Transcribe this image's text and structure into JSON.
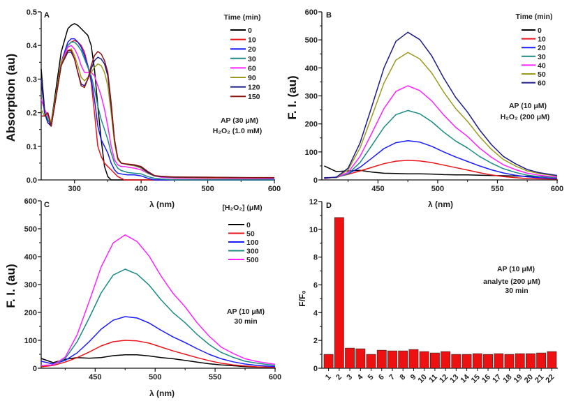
{
  "chart_data": [
    {
      "panel": "A",
      "type": "line",
      "xlabel": "λ (nm)",
      "ylabel": "Absorption (au)",
      "xlim": [
        250,
        600
      ],
      "ylim": [
        0,
        0.5
      ],
      "xticks": [
        300,
        400,
        500,
        600
      ],
      "xtick_labels": [
        "300",
        "400",
        "500",
        "600"
      ],
      "yticks": [
        0,
        0.1,
        0.2,
        0.3,
        0.4,
        0.5
      ],
      "ytick_labels": [
        "0.0",
        "0.1",
        "0.2",
        "0.3",
        "0.4",
        "0.5"
      ],
      "grid": false,
      "legend_title": "Time (min)",
      "legend_placement": "top-right",
      "annotations": [
        "AP (30 μM)",
        "H₂O₂ (1.0 mM)"
      ],
      "x": [
        250,
        255,
        260,
        265,
        270,
        280,
        290,
        295,
        300,
        305,
        310,
        315,
        320,
        325,
        330,
        335,
        340,
        345,
        350,
        355,
        360,
        365,
        370,
        375,
        380,
        390,
        400,
        410,
        420,
        430,
        450,
        500,
        550,
        600
      ],
      "series": [
        {
          "name": "0",
          "color": "#000000",
          "values": [
            0.33,
            0.21,
            0.19,
            0.17,
            0.24,
            0.38,
            0.45,
            0.46,
            0.465,
            0.46,
            0.45,
            0.44,
            0.43,
            0.4,
            0.33,
            0.22,
            0.12,
            0.04,
            0.01,
            0,
            0,
            0,
            0,
            0,
            0,
            0,
            0,
            0,
            0,
            0,
            0,
            0,
            0,
            0
          ]
        },
        {
          "name": "10",
          "color": "#e8141a",
          "values": [
            0.3,
            0.2,
            0.18,
            0.16,
            0.22,
            0.34,
            0.4,
            0.41,
            0.415,
            0.41,
            0.4,
            0.38,
            0.34,
            0.29,
            0.2,
            0.1,
            0.07,
            0.05,
            0.04,
            0.03,
            0.02,
            0.01,
            0.005,
            0,
            0,
            0,
            0,
            0,
            0,
            0,
            0,
            0,
            0,
            0
          ]
        },
        {
          "name": "20",
          "color": "#1a1aff",
          "values": [
            0.3,
            0.2,
            0.18,
            0.16,
            0.22,
            0.35,
            0.41,
            0.42,
            0.42,
            0.41,
            0.395,
            0.37,
            0.34,
            0.3,
            0.24,
            0.16,
            0.12,
            0.1,
            0.08,
            0.05,
            0.03,
            0.02,
            0.018,
            0.016,
            0.015,
            0.015,
            0.012,
            0.005,
            0,
            0,
            0,
            0,
            0,
            0
          ]
        },
        {
          "name": "30",
          "color": "#1a8a82",
          "values": [
            0.3,
            0.2,
            0.18,
            0.165,
            0.22,
            0.34,
            0.4,
            0.41,
            0.41,
            0.4,
            0.385,
            0.36,
            0.335,
            0.31,
            0.27,
            0.22,
            0.18,
            0.15,
            0.12,
            0.08,
            0.05,
            0.035,
            0.028,
            0.025,
            0.022,
            0.02,
            0.018,
            0.01,
            0.005,
            0.003,
            0,
            0,
            0,
            0
          ]
        },
        {
          "name": "60",
          "color": "#ff22ff",
          "values": [
            0.24,
            0.21,
            0.19,
            0.17,
            0.22,
            0.35,
            0.395,
            0.4,
            0.39,
            0.37,
            0.34,
            0.32,
            0.32,
            0.32,
            0.31,
            0.28,
            0.25,
            0.21,
            0.16,
            0.1,
            0.06,
            0.045,
            0.04,
            0.04,
            0.038,
            0.035,
            0.03,
            0.02,
            0.012,
            0.008,
            0.005,
            0.004,
            0.004,
            0.004
          ]
        },
        {
          "name": "90",
          "color": "#9c9a1e",
          "values": [
            0.21,
            0.19,
            0.2,
            0.17,
            0.23,
            0.35,
            0.385,
            0.39,
            0.37,
            0.34,
            0.305,
            0.295,
            0.305,
            0.32,
            0.335,
            0.345,
            0.34,
            0.32,
            0.28,
            0.2,
            0.11,
            0.06,
            0.05,
            0.048,
            0.045,
            0.042,
            0.035,
            0.02,
            0.012,
            0.01,
            0.007,
            0.006,
            0.006,
            0.006
          ]
        },
        {
          "name": "120",
          "color": "#1c1c86",
          "values": [
            0.3,
            0.2,
            0.17,
            0.16,
            0.22,
            0.34,
            0.38,
            0.38,
            0.36,
            0.32,
            0.285,
            0.28,
            0.3,
            0.33,
            0.355,
            0.365,
            0.36,
            0.345,
            0.31,
            0.22,
            0.12,
            0.065,
            0.05,
            0.048,
            0.046,
            0.044,
            0.038,
            0.022,
            0.012,
            0.01,
            0.008,
            0.008,
            0.007,
            0.006
          ]
        },
        {
          "name": "150",
          "color": "#8b1010",
          "values": [
            0.19,
            0.19,
            0.2,
            0.16,
            0.22,
            0.34,
            0.385,
            0.385,
            0.36,
            0.32,
            0.28,
            0.275,
            0.3,
            0.34,
            0.37,
            0.382,
            0.375,
            0.355,
            0.32,
            0.23,
            0.12,
            0.065,
            0.05,
            0.048,
            0.047,
            0.045,
            0.04,
            0.025,
            0.013,
            0.011,
            0.009,
            0.008,
            0.007,
            0.007
          ]
        }
      ]
    },
    {
      "panel": "B",
      "type": "line",
      "xlabel": "λ (nm)",
      "ylabel": "F. I. (au)",
      "xlim": [
        403,
        600
      ],
      "ylim": [
        0,
        600
      ],
      "xticks": [
        450,
        500,
        550,
        600
      ],
      "xtick_labels": [
        "450",
        "500",
        "550",
        "600"
      ],
      "yticks": [
        0,
        100,
        200,
        300,
        400,
        500,
        600
      ],
      "ytick_labels": [
        "0",
        "100",
        "200",
        "300",
        "400",
        "500",
        "600"
      ],
      "grid": false,
      "legend_title": "Time (min)",
      "legend_placement": "top-right",
      "annotations": [
        "AP (10 μM)",
        "H₂O₂ (200 μM)"
      ],
      "x": [
        405,
        415,
        425,
        435,
        445,
        455,
        465,
        475,
        485,
        495,
        505,
        515,
        525,
        535,
        545,
        555,
        565,
        575,
        585,
        600
      ],
      "series": [
        {
          "name": "0",
          "color": "#000000",
          "values": [
            50,
            30,
            32,
            34,
            28,
            24,
            23,
            22,
            22,
            21,
            19,
            18,
            18,
            17,
            16,
            15,
            14,
            13,
            12,
            10
          ]
        },
        {
          "name": "10",
          "color": "#e8141a",
          "values": [
            5,
            10,
            20,
            32,
            45,
            58,
            67,
            70,
            68,
            62,
            53,
            44,
            35,
            26,
            18,
            12,
            8,
            5,
            4,
            3
          ]
        },
        {
          "name": "20",
          "color": "#1a1aff",
          "values": [
            6,
            10,
            22,
            45,
            78,
            112,
            133,
            140,
            135,
            120,
            100,
            82,
            66,
            50,
            36,
            25,
            17,
            11,
            8,
            5
          ]
        },
        {
          "name": "30",
          "color": "#1a8a82",
          "values": [
            8,
            8,
            22,
            62,
            124,
            188,
            233,
            248,
            236,
            208,
            171,
            139,
            114,
            84,
            60,
            40,
            27,
            17,
            12,
            8
          ]
        },
        {
          "name": "40",
          "color": "#ff22ff",
          "values": [
            8,
            8,
            27,
            84,
            168,
            255,
            316,
            336,
            319,
            282,
            232,
            188,
            155,
            114,
            81,
            54,
            37,
            24,
            17,
            10
          ]
        },
        {
          "name": "50",
          "color": "#9c9a1e",
          "values": [
            8,
            8,
            36,
            114,
            228,
            346,
            428,
            455,
            432,
            382,
            314,
            255,
            209,
            155,
            109,
            73,
            50,
            32,
            23,
            14
          ]
        },
        {
          "name": "60",
          "color": "#1c1c86",
          "values": [
            8,
            9,
            42,
            132,
            264,
            400,
            495,
            527,
            501,
            443,
            364,
            295,
            242,
            179,
            126,
            84,
            58,
            37,
            26,
            16
          ]
        }
      ]
    },
    {
      "panel": "C",
      "type": "line",
      "xlabel": "λ (nm)",
      "ylabel": "F. I. (au)",
      "xlim": [
        405,
        600
      ],
      "ylim": [
        0,
        600
      ],
      "xticks": [
        450,
        500,
        550,
        600
      ],
      "xtick_labels": [
        "450",
        "500",
        "550",
        "600"
      ],
      "yticks": [
        0,
        100,
        200,
        300,
        400,
        500,
        600
      ],
      "ytick_labels": [
        "0",
        "100",
        "200",
        "300",
        "400",
        "500",
        "600"
      ],
      "grid": false,
      "legend_title": "[H₂O₂] (μM)",
      "legend_placement": "top-right",
      "annotations": [
        "AP (10 μM)",
        "30 min"
      ],
      "x": [
        405,
        415,
        425,
        435,
        445,
        455,
        465,
        475,
        485,
        495,
        505,
        515,
        525,
        535,
        545,
        555,
        565,
        575,
        585,
        600
      ],
      "series": [
        {
          "name": "0",
          "color": "#000000",
          "values": [
            35,
            20,
            32,
            38,
            36,
            38,
            45,
            48,
            48,
            44,
            38,
            34,
            28,
            22,
            16,
            12,
            9,
            6,
            4,
            3
          ]
        },
        {
          "name": "50",
          "color": "#e8141a",
          "values": [
            5,
            10,
            22,
            38,
            58,
            80,
            95,
            100,
            98,
            90,
            76,
            62,
            50,
            38,
            27,
            18,
            12,
            8,
            5,
            3
          ]
        },
        {
          "name": "100",
          "color": "#1a1aff",
          "values": [
            25,
            15,
            28,
            55,
            95,
            140,
            172,
            185,
            180,
            162,
            136,
            112,
            92,
            70,
            50,
            34,
            23,
            15,
            10,
            6
          ]
        },
        {
          "name": "300",
          "color": "#1a8a82",
          "values": [
            10,
            12,
            35,
            95,
            180,
            270,
            334,
            355,
            337,
            298,
            245,
            199,
            163,
            121,
            85,
            57,
            39,
            25,
            18,
            10
          ]
        },
        {
          "name": "500",
          "color": "#ff22ff",
          "values": [
            10,
            12,
            40,
            120,
            239,
            363,
            449,
            478,
            454,
            402,
            330,
            268,
            220,
            163,
            115,
            76,
            53,
            34,
            24,
            14
          ]
        }
      ]
    },
    {
      "panel": "D",
      "type": "bar",
      "xlabel": "",
      "ylabel": "F/F₀",
      "ylim": [
        0,
        12
      ],
      "yticks": [
        0,
        2,
        4,
        6,
        8,
        10,
        12
      ],
      "ytick_labels": [
        "0",
        "2",
        "4",
        "6",
        "8",
        "10",
        "12"
      ],
      "grid": false,
      "bar_color": "#ee1111",
      "annotations": [
        "AP (10 μM)",
        "analyte (200 μM)",
        "30 min"
      ],
      "categories": [
        "1",
        "2",
        "3",
        "4",
        "5",
        "6",
        "7",
        "8",
        "9",
        "10",
        "11",
        "12",
        "13",
        "14",
        "15",
        "16",
        "17",
        "18",
        "19",
        "20",
        "21",
        "22"
      ],
      "values": [
        1.0,
        10.85,
        1.45,
        1.4,
        1.0,
        1.3,
        1.25,
        1.25,
        1.35,
        1.2,
        1.1,
        1.2,
        1.0,
        1.0,
        1.05,
        1.0,
        1.05,
        1.0,
        1.05,
        1.05,
        1.1,
        1.2
      ]
    }
  ],
  "panel_letters": [
    "A",
    "B",
    "C",
    "D"
  ]
}
